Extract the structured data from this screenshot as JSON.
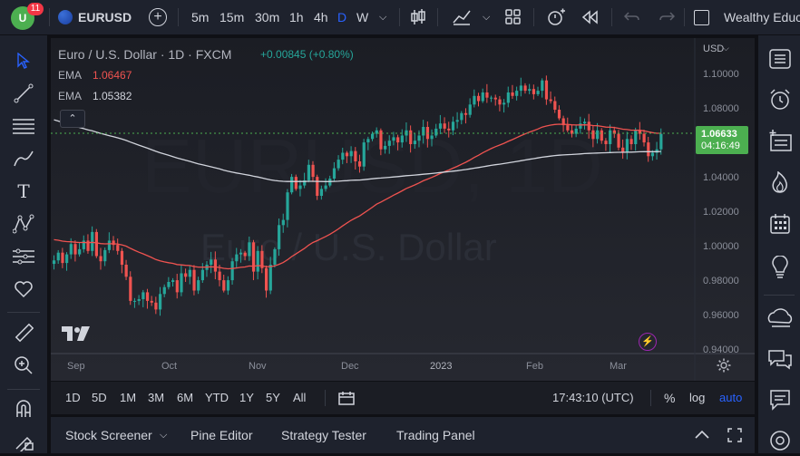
{
  "colors": {
    "bg": "#0f1015",
    "panel": "#1e222d",
    "accent": "#2962ff",
    "up": "#26a69a",
    "down": "#ef5350",
    "green_badge": "#4caf50",
    "badge_red": "#f23645"
  },
  "topbar": {
    "notif_count": "11",
    "symbol": "EURUSD",
    "timeframes": [
      "5m",
      "15m",
      "30m",
      "1h",
      "4h",
      "D",
      "W"
    ],
    "active_timeframe": "D",
    "account_label": "Wealthy Educ"
  },
  "legend": {
    "title": "Euro / U.S. Dollar · 1D · FXCM",
    "change": "+0.00845 (+0.80%)",
    "ema1_label": "EMA",
    "ema1_value": "1.06467",
    "ema2_label": "EMA",
    "ema2_value": "1.05382"
  },
  "watermark": {
    "symbol": "EURUSD, 1D",
    "name": "Euro / U.S. Dollar"
  },
  "price_scale": {
    "currency": "USD",
    "ticks": [
      "1.10000",
      "1.08000",
      "1.06000",
      "1.04000",
      "1.02000",
      "1.00000",
      "0.98000",
      "0.96000",
      "0.94000"
    ],
    "last_price": "1.06633",
    "countdown": "04:16:49"
  },
  "time_scale": [
    "Sep",
    "Oct",
    "Nov",
    "Dec",
    "2023",
    "Feb",
    "Mar"
  ],
  "bottombar": {
    "ranges": [
      "1D",
      "5D",
      "1M",
      "3M",
      "6M",
      "YTD",
      "1Y",
      "5Y",
      "All"
    ],
    "clock": "17:43:10 (UTC)",
    "pct": "%",
    "log": "log",
    "auto": "auto"
  },
  "panelbar": {
    "tabs": [
      "Stock Screener",
      "Pine Editor",
      "Strategy Tester",
      "Trading Panel"
    ]
  },
  "chart_data": {
    "type": "candlestick",
    "title": "Euro / U.S. Dollar · 1D · FXCM",
    "ylim": [
      0.94,
      1.11
    ],
    "closes": [
      0.9925,
      0.997,
      0.991,
      0.996,
      1.002,
      0.996,
      0.999,
      1.004,
      0.998,
      1.009,
      0.995,
      0.992,
      0.9985,
      1.004,
      1.0015,
      0.998,
      0.99,
      0.983,
      0.969,
      0.969,
      0.97,
      0.974,
      0.969,
      0.968,
      0.964,
      0.973,
      0.977,
      0.98,
      0.981,
      0.974,
      0.985,
      0.983,
      0.987,
      0.975,
      0.981,
      0.987,
      0.99,
      0.993,
      0.986,
      0.981,
      0.975,
      0.981,
      0.992,
      0.996,
      0.997,
      0.995,
      1.003,
      0.986,
      0.998,
      0.988,
      0.975,
      0.99,
      0.999,
      1.013,
      1.016,
      1.032,
      1.041,
      1.034,
      1.036,
      1.039,
      1.048,
      1.041,
      1.03,
      1.034,
      1.036,
      1.04,
      1.046,
      1.051,
      1.055,
      1.053,
      1.056,
      1.05,
      1.047,
      1.061,
      1.063,
      1.066,
      1.068,
      1.057,
      1.059,
      1.062,
      1.064,
      1.061,
      1.065,
      1.068,
      1.06,
      1.062,
      1.065,
      1.07,
      1.063,
      1.065,
      1.069,
      1.072,
      1.069,
      1.068,
      1.073,
      1.074,
      1.078,
      1.077,
      1.083,
      1.088,
      1.085,
      1.09,
      1.087,
      1.087,
      1.086,
      1.083,
      1.084,
      1.09,
      1.088,
      1.091,
      1.094,
      1.091,
      1.092,
      1.089,
      1.091,
      1.097,
      1.086,
      1.085,
      1.08,
      1.075,
      1.071,
      1.068,
      1.066,
      1.069,
      1.072,
      1.073,
      1.068,
      1.063,
      1.068,
      1.062,
      1.06,
      1.068,
      1.066,
      1.058,
      1.055,
      1.063,
      1.06,
      1.068,
      1.066,
      1.061,
      1.053,
      1.055,
      1.057,
      1.066
    ]
  }
}
